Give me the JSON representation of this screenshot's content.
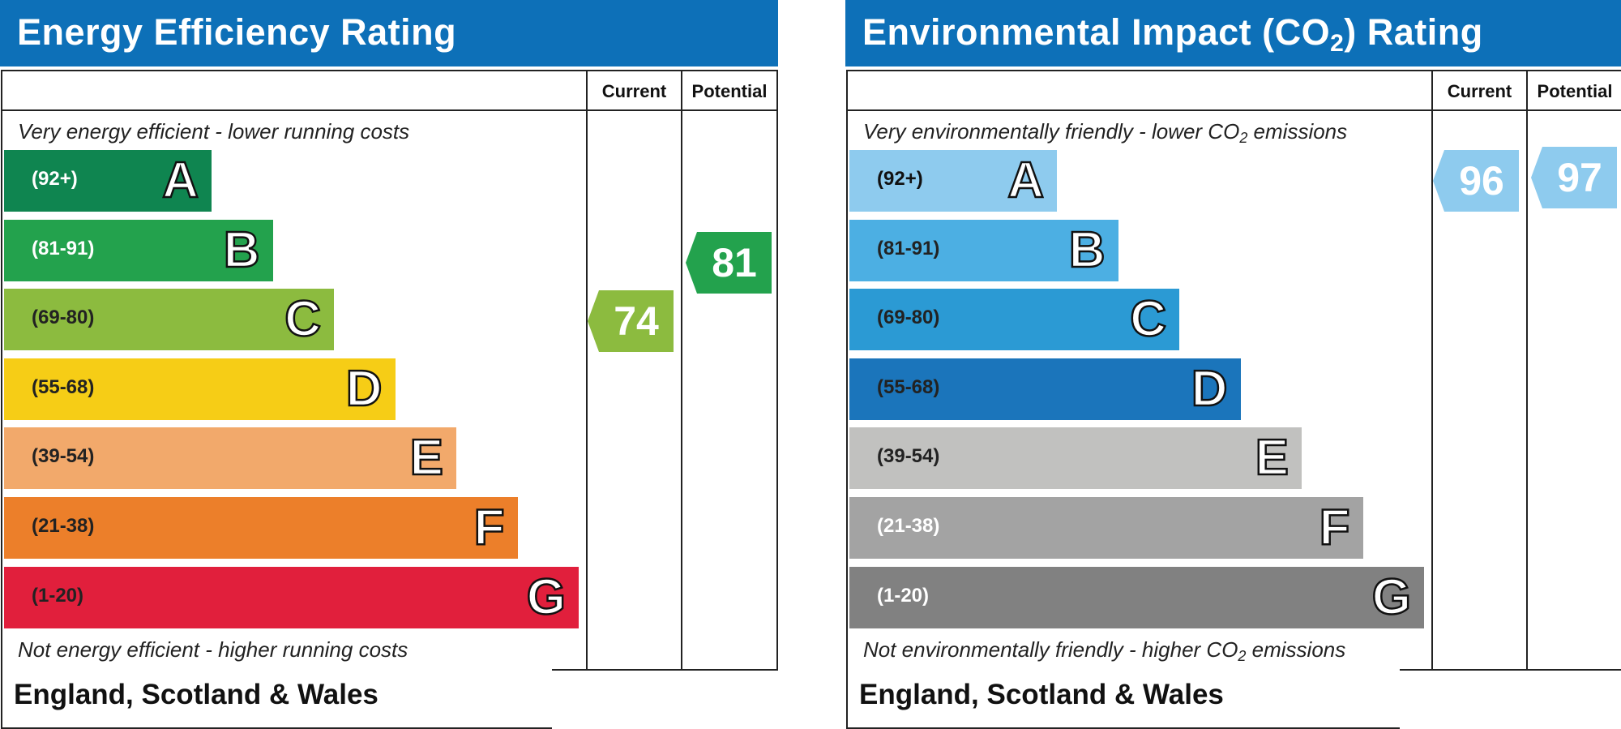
{
  "energy_efficiency": {
    "title": "Energy Efficiency Rating",
    "col_current": "Current",
    "col_potential": "Potential",
    "top_caption": "Very energy efficient - lower running costs",
    "bottom_caption": "Not energy efficient - higher running costs",
    "footer": "England, Scotland & Wales"
  },
  "environmental_impact": {
    "title_prefix": "Environmental Impact (CO",
    "title_sub": "2",
    "title_suffix": ") Rating",
    "col_current": "Current",
    "col_potential": "Potential",
    "top_caption_prefix": "Very environmentally friendly - lower CO",
    "top_caption_sub": "2",
    "top_caption_suffix": " emissions",
    "bottom_caption_prefix": "Not environmentally friendly - higher CO",
    "bottom_caption_sub": "2",
    "bottom_caption_suffix": " emissions",
    "footer": "England, Scotland & Wales"
  },
  "chart_data": [
    {
      "type": "bar",
      "title": "Energy Efficiency Rating",
      "categories": [
        "A",
        "B",
        "C",
        "D",
        "E",
        "F",
        "G"
      ],
      "ranges": [
        "(92+)",
        "(81-91)",
        "(69-80)",
        "(55-68)",
        "(39-54)",
        "(21-38)",
        "(1-20)"
      ],
      "colors": [
        "#0f8550",
        "#23a24d",
        "#8cbb3f",
        "#f6cd16",
        "#f2a96b",
        "#ec7f2a",
        "#e11f3c"
      ],
      "range_text_colors": [
        "#ffffff",
        "#ffffff",
        "#222222",
        "#222222",
        "#222222",
        "#222222",
        "#222222"
      ],
      "current": 74,
      "potential": 81,
      "current_color": "#8cbb3f",
      "potential_color": "#23a24d"
    },
    {
      "type": "bar",
      "title": "Environmental Impact (CO2) Rating",
      "categories": [
        "A",
        "B",
        "C",
        "D",
        "E",
        "F",
        "G"
      ],
      "ranges": [
        "(92+)",
        "(81-91)",
        "(69-80)",
        "(55-68)",
        "(39-54)",
        "(21-38)",
        "(1-20)"
      ],
      "colors": [
        "#8ecbee",
        "#4cafe3",
        "#2b9ad4",
        "#1b75bb",
        "#c1c1bf",
        "#a3a3a3",
        "#818181"
      ],
      "range_text_colors": [
        "#111111",
        "#222222",
        "#222222",
        "#222222",
        "#222222",
        "#ffffff",
        "#ffffff"
      ],
      "current": 96,
      "potential": 97,
      "current_color": "#8ecbee",
      "potential_color": "#8ecbee"
    }
  ]
}
